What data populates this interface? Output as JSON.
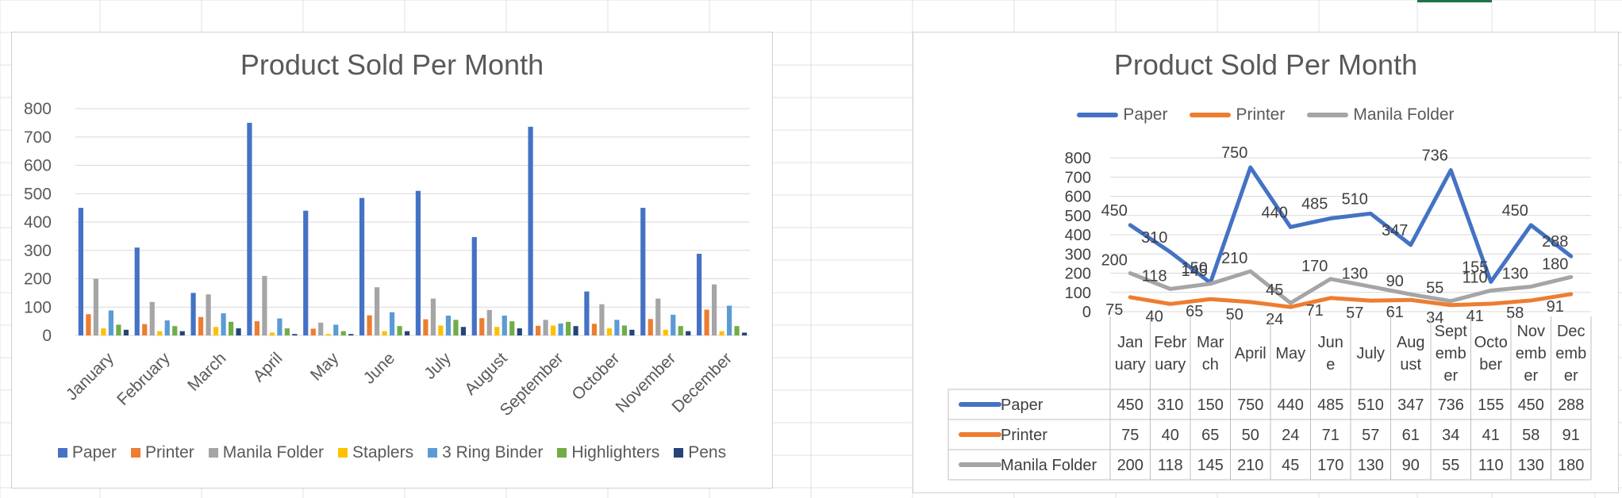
{
  "colors": {
    "Paper": "#4472c4",
    "Printer": "#ed7d31",
    "Manila Folder": "#a5a5a5",
    "Staplers": "#ffc000",
    "3 Ring Binder": "#5b9bd5",
    "Highlighters": "#70ad47",
    "Pens": "#264478"
  },
  "chart_data": [
    {
      "type": "bar",
      "title": "Product Sold Per Month",
      "categories": [
        "January",
        "February",
        "March",
        "April",
        "May",
        "June",
        "July",
        "August",
        "September",
        "October",
        "November",
        "December"
      ],
      "ylim": [
        0,
        800
      ],
      "yticks": [
        0,
        100,
        200,
        300,
        400,
        500,
        600,
        700,
        800
      ],
      "grid": true,
      "legend": "bottom",
      "series": [
        {
          "name": "Paper",
          "values": [
            450,
            310,
            150,
            750,
            440,
            485,
            510,
            347,
            736,
            155,
            450,
            288
          ]
        },
        {
          "name": "Printer",
          "values": [
            75,
            40,
            65,
            50,
            24,
            71,
            57,
            61,
            34,
            41,
            58,
            91
          ]
        },
        {
          "name": "Manila Folder",
          "values": [
            200,
            118,
            145,
            210,
            45,
            170,
            130,
            90,
            55,
            110,
            130,
            180
          ]
        },
        {
          "name": "Staplers",
          "values": [
            25,
            15,
            30,
            10,
            5,
            15,
            35,
            30,
            35,
            25,
            20,
            15
          ]
        },
        {
          "name": "3 Ring Binder",
          "values": [
            88,
            53,
            78,
            60,
            38,
            82,
            70,
            70,
            42,
            55,
            73,
            105
          ]
        },
        {
          "name": "Highlighters",
          "values": [
            38,
            33,
            48,
            25,
            15,
            33,
            55,
            50,
            48,
            35,
            33,
            33
          ]
        },
        {
          "name": "Pens",
          "values": [
            20,
            15,
            25,
            5,
            5,
            15,
            30,
            25,
            33,
            20,
            15,
            10
          ]
        }
      ]
    },
    {
      "type": "line",
      "title": "Product Sold Per Month",
      "categories": [
        "January",
        "February",
        "March",
        "April",
        "May",
        "June",
        "July",
        "August",
        "September",
        "October",
        "November",
        "December"
      ],
      "ylim": [
        0,
        800
      ],
      "yticks": [
        0,
        100,
        200,
        300,
        400,
        500,
        600,
        700,
        800
      ],
      "grid": true,
      "legend": "top",
      "data_table": true,
      "series": [
        {
          "name": "Paper",
          "values": [
            450,
            310,
            150,
            750,
            440,
            485,
            510,
            347,
            736,
            155,
            450,
            288
          ]
        },
        {
          "name": "Printer",
          "values": [
            75,
            40,
            65,
            50,
            24,
            71,
            57,
            61,
            34,
            41,
            58,
            91
          ]
        },
        {
          "name": "Manila Folder",
          "values": [
            200,
            118,
            145,
            210,
            45,
            170,
            130,
            90,
            55,
            110,
            130,
            180
          ]
        }
      ]
    }
  ]
}
